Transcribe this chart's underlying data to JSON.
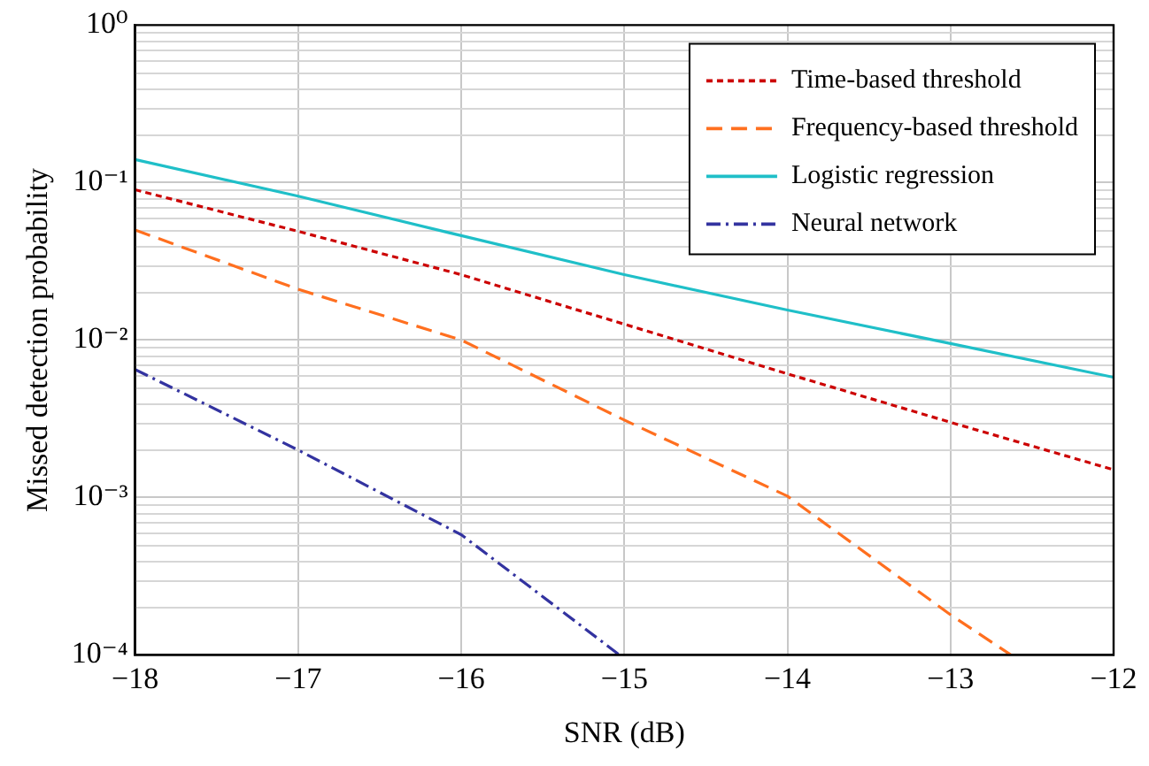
{
  "chart_data": {
    "type": "line",
    "xlabel": "SNR (dB)",
    "ylabel": "Missed detection probability",
    "xlim": [
      -18,
      -12
    ],
    "xticks": [
      {
        "value": -18,
        "label": "−18"
      },
      {
        "value": -17,
        "label": "−17"
      },
      {
        "value": -16,
        "label": "−16"
      },
      {
        "value": -15,
        "label": "−15"
      },
      {
        "value": -14,
        "label": "−14"
      },
      {
        "value": -13,
        "label": "−13"
      },
      {
        "value": -12,
        "label": "−12"
      }
    ],
    "ylim": [
      0.0001,
      1
    ],
    "yticks": [
      {
        "value": 0.0001,
        "label": "10⁻⁴"
      },
      {
        "value": 0.001,
        "label": "10⁻³"
      },
      {
        "value": 0.01,
        "label": "10⁻²"
      },
      {
        "value": 0.1,
        "label": "10⁻¹"
      },
      {
        "value": 1,
        "label": "10⁰"
      }
    ],
    "log": "y",
    "grid": true,
    "legend": "top right",
    "marker": "none",
    "series": [
      {
        "name": "Time-based threshold",
        "color": "#cc0000",
        "line_style": "dotted",
        "x": [
          -18,
          -17,
          -16,
          -15,
          -14,
          -13,
          -12
        ],
        "values": [
          0.09,
          0.049,
          0.026,
          0.0126,
          0.0061,
          0.003,
          0.0015
        ]
      },
      {
        "name": "Frequency-based threshold",
        "color": "#ff6f1f",
        "line_style": "dashed",
        "x": [
          -18,
          -17,
          -16,
          -15,
          -14,
          -13,
          -12.63
        ],
        "values": [
          0.05,
          0.021,
          0.01,
          0.0031,
          0.00102,
          0.00018,
          0.0001
        ]
      },
      {
        "name": "Logistic regression",
        "color": "#1fbfc8",
        "line_style": "solid",
        "x": [
          -18,
          -17,
          -16,
          -15,
          -14,
          -13,
          -12
        ],
        "values": [
          0.14,
          0.082,
          0.046,
          0.026,
          0.0155,
          0.0095,
          0.0058
        ]
      },
      {
        "name": "Neural network",
        "color": "#3333a0",
        "line_style": "dashdot",
        "x": [
          -18,
          -17,
          -16,
          -15.03
        ],
        "values": [
          0.0065,
          0.002,
          0.00058,
          0.0001
        ]
      }
    ]
  }
}
